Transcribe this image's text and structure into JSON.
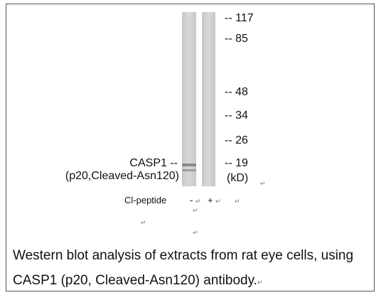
{
  "markers": {
    "prefix": "--",
    "values": [
      "117",
      "85",
      "48",
      "34",
      "26",
      "19"
    ],
    "unit": "(kD)"
  },
  "band_label": {
    "name": "CASP1 --",
    "detail": "(p20,Cleaved-Asn120)"
  },
  "peptide": {
    "label": "Cl-peptide",
    "lanes": [
      "-",
      "+"
    ]
  },
  "return_mark": "↵",
  "caption": {
    "lines": [
      "Western blot analysis of extracts from rat eye cells, using",
      "CASP1 (p20, Cleaved-Asn120) antibody."
    ]
  }
}
